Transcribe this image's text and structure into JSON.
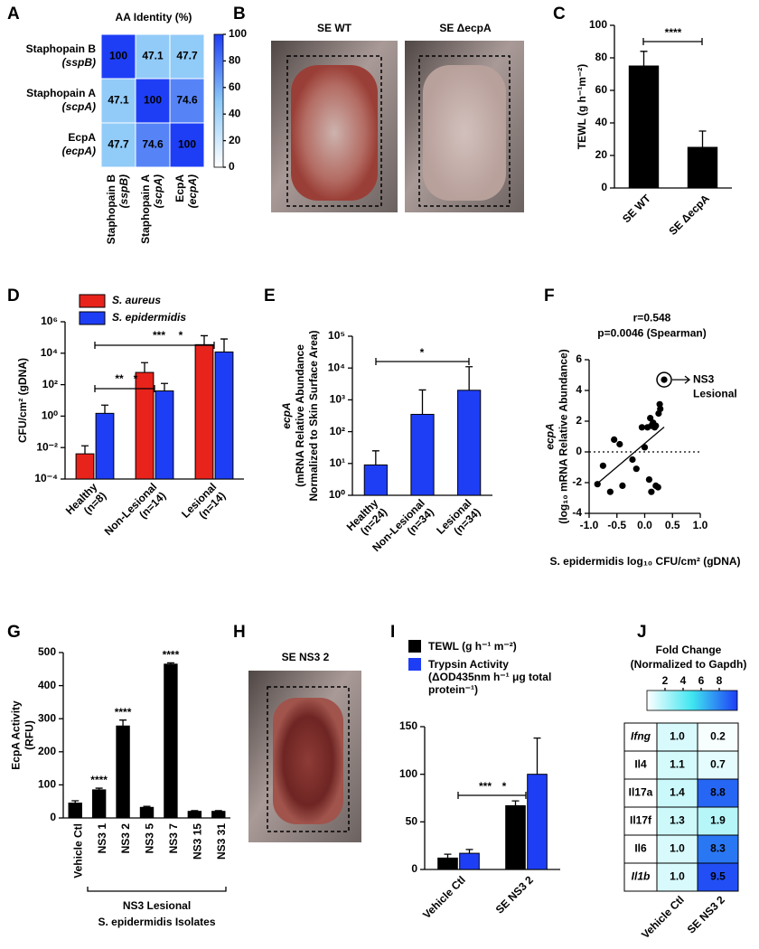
{
  "chart_data": [
    {
      "panel": "A",
      "type": "heatmap",
      "title": "AA Identity (%)",
      "rows": [
        [
          "Staphopain B",
          "(sspB)"
        ],
        [
          "Staphopain A",
          "(scpA)"
        ],
        [
          "EcpA",
          "(ecpA)"
        ]
      ],
      "columns": [
        [
          "Staphopain B",
          "(sspB)"
        ],
        [
          "Staphopain A",
          "(scpA)"
        ],
        [
          "EcpA",
          "(ecpA)"
        ]
      ],
      "values": [
        [
          100,
          47.1,
          47.7
        ],
        [
          47.1,
          100,
          74.6
        ],
        [
          47.7,
          74.6,
          100
        ]
      ],
      "clim": [
        0,
        100
      ],
      "cticks": [
        0,
        20,
        40,
        60,
        80,
        100
      ],
      "colors": [
        "#ffffff",
        "#8cc8f8",
        "#1e3ef6"
      ]
    },
    {
      "panel": "C",
      "type": "bar",
      "categories": [
        "SE WT",
        "SE ΔecpA"
      ],
      "values": [
        75,
        25
      ],
      "errors": [
        9,
        10
      ],
      "color": "#000000",
      "ylim": [
        0,
        100
      ],
      "yticks": [
        0,
        20,
        40,
        60,
        80,
        100
      ],
      "ylabel": "TEWL (g h⁻¹m⁻²)",
      "annotations": [
        {
          "text": "****",
          "color": "#000000"
        }
      ]
    },
    {
      "panel": "D",
      "type": "bar",
      "log_scale": true,
      "categories": [
        [
          "Healthy",
          "(n=8)"
        ],
        [
          "Non-Lesional",
          "(n=14)"
        ],
        [
          "Lesional",
          "(n=14)"
        ]
      ],
      "series": [
        {
          "name": "S. aureus",
          "color": "#e8231b",
          "values": [
            0.004,
            600,
            35000
          ],
          "errors": [
            0.009,
            1900,
            95000
          ]
        },
        {
          "name": "S. epidermidis",
          "color": "#1e3ef6",
          "values": [
            1.5,
            40,
            12000
          ],
          "errors": [
            3.5,
            80,
            68000
          ]
        }
      ],
      "ylim": [
        0.0001,
        1000000
      ],
      "yticks": [
        {
          "value": 0.0001,
          "label": "10⁻⁴"
        },
        {
          "value": 0.01,
          "label": "10⁻²"
        },
        {
          "value": 1,
          "label": "10⁰"
        },
        {
          "value": 100,
          "label": "10²"
        },
        {
          "value": 10000,
          "label": "10⁴"
        },
        {
          "value": 1000000,
          "label": "10⁶"
        }
      ],
      "ylabel": "CFU/cm² (gDNA)",
      "annotations": [
        {
          "text": "***",
          "color": "#e8231b"
        },
        {
          "text": "*",
          "color": "#1e3ef6"
        },
        {
          "text": "**",
          "color": "#e8231b"
        },
        {
          "text": "*",
          "color": "#1e3ef6"
        }
      ]
    },
    {
      "panel": "E",
      "type": "bar",
      "log_scale": true,
      "categories": [
        [
          "Healthy",
          "(n=24)"
        ],
        [
          "Non-Lesional",
          "(n=34)"
        ],
        [
          "Lesional",
          "(n=34)"
        ]
      ],
      "values": [
        9,
        350,
        2000
      ],
      "errors": [
        16,
        1700,
        9000
      ],
      "color": "#1e3ef6",
      "ylim": [
        1,
        100000
      ],
      "yticks": [
        {
          "value": 1,
          "label": "10⁰"
        },
        {
          "value": 10,
          "label": "10¹"
        },
        {
          "value": 100,
          "label": "10²"
        },
        {
          "value": 1000,
          "label": "10³"
        },
        {
          "value": 10000,
          "label": "10⁴"
        },
        {
          "value": 100000,
          "label": "10⁵"
        }
      ],
      "ylabel": [
        "ecpA",
        "(mRNA Relative Abundance",
        "Normalized to Skin Surface Area)"
      ],
      "annotations": [
        {
          "text": "*",
          "color": "#000000"
        }
      ]
    },
    {
      "panel": "F",
      "type": "scatter",
      "title": [
        "r=0.548",
        "p=0.0046 (Spearman)"
      ],
      "x": [
        -0.85,
        -0.75,
        -0.62,
        -0.55,
        -0.45,
        -0.4,
        -0.22,
        -0.15,
        -0.05,
        0.0,
        0.05,
        0.1,
        0.12,
        0.15,
        0.18,
        0.2,
        0.25,
        0.27,
        0.28,
        0.08,
        0.12,
        0.2,
        0.24,
        0.35
      ],
      "y": [
        -2.1,
        -0.9,
        -2.6,
        0.8,
        0.5,
        -2.2,
        -0.5,
        -1.1,
        1.6,
        0.3,
        1.6,
        2.2,
        1.7,
        1.9,
        1.6,
        1.7,
        2.5,
        3.1,
        2.8,
        -1.8,
        -2.6,
        -2.2,
        -2.3,
        4.7
      ],
      "color": "#000000",
      "xlim": [
        -1,
        1
      ],
      "xticks": [
        {
          "value": -1,
          "label": "-1.0"
        },
        {
          "value": -0.5,
          "label": "-0.5"
        },
        {
          "value": 0,
          "label": "0.0"
        },
        {
          "value": 0.5,
          "label": "0.5"
        },
        {
          "value": 1,
          "label": "1.0"
        }
      ],
      "ylim": [
        -4,
        6
      ],
      "yticks": [
        -4,
        -2,
        0,
        2,
        4,
        6
      ],
      "xlabel": "S. epidermidis log₁₀ CFU/cm² (gDNA)",
      "ylabel": [
        "ecpA",
        "(log₁₀ mRNA Relative Abundance)"
      ],
      "annotation": [
        "NS3",
        "Lesional"
      ],
      "annotation_color": "#1e3ef6"
    },
    {
      "panel": "G",
      "type": "bar",
      "categories": [
        "Vehicle Ctl",
        "NS3 1",
        "NS3 2",
        "NS3 5",
        "NS3 7",
        "NS3 15",
        "NS3 31"
      ],
      "values": [
        45,
        85,
        278,
        32,
        465,
        20,
        20
      ],
      "errors": [
        7,
        5,
        18,
        3,
        4,
        2,
        2
      ],
      "color": "#000000",
      "ylim": [
        0,
        500
      ],
      "yticks": [
        0,
        100,
        200,
        300,
        400,
        500
      ],
      "ylabel": [
        "EcpA Activity",
        "(RFU)"
      ],
      "group_label": [
        "NS3 Lesional",
        "S. epidermidis Isolates"
      ],
      "annotations": [
        {
          "text": "****",
          "color": "#000000"
        },
        {
          "text": "****",
          "color": "#000000"
        },
        {
          "text": "****",
          "color": "#000000"
        }
      ]
    },
    {
      "panel": "I",
      "type": "bar",
      "categories": [
        "Vehicle Ctl",
        "SE NS3 2"
      ],
      "series": [
        {
          "name": "TEWL (g h⁻¹ m⁻²)",
          "color": "#000000",
          "values": [
            12,
            67
          ],
          "errors": [
            4,
            5
          ]
        },
        {
          "name": "Trypsin Activity (ΔOD435nm h⁻¹ μg total protein⁻¹)",
          "color": "#1e3ef6",
          "values": [
            17,
            100
          ],
          "errors": [
            4,
            38
          ]
        }
      ],
      "ylim": [
        0,
        150
      ],
      "yticks": [
        0,
        50,
        100,
        150
      ],
      "annotations": [
        {
          "text": "***",
          "color": "#000000"
        },
        {
          "text": "*",
          "color": "#1e3ef6"
        }
      ]
    },
    {
      "panel": "J",
      "type": "heatmap",
      "title": [
        "Fold Change",
        "(Normalized to Gapdh)"
      ],
      "rows": [
        "Ifng",
        "Il4",
        "Il17a",
        "Il17f",
        "Il6",
        "Il1b"
      ],
      "columns": [
        "Vehicle Ctl",
        "SE NS3 2"
      ],
      "values": [
        [
          1.0,
          0.2
        ],
        [
          1.1,
          0.7
        ],
        [
          1.4,
          8.8
        ],
        [
          1.3,
          1.9
        ],
        [
          1.0,
          8.3
        ],
        [
          1.0,
          9.5
        ]
      ],
      "value_labels": [
        [
          "1.0",
          "0.2"
        ],
        [
          "1.1",
          "0.7"
        ],
        [
          "1.4",
          "8.8"
        ],
        [
          "1.3",
          "1.9"
        ],
        [
          "1.0",
          "8.3"
        ],
        [
          "1.0",
          "9.5"
        ]
      ],
      "clim": [
        0,
        10
      ],
      "cticks": [
        2,
        4,
        6,
        8
      ],
      "colors": [
        "#ffffff",
        "#40e6f0",
        "#1e3ef6"
      ]
    }
  ],
  "images": [
    {
      "panel": "B",
      "captions": [
        "SE WT",
        "SE ΔecpA"
      ]
    },
    {
      "panel": "H",
      "captions": [
        "SE NS3 2"
      ]
    }
  ]
}
